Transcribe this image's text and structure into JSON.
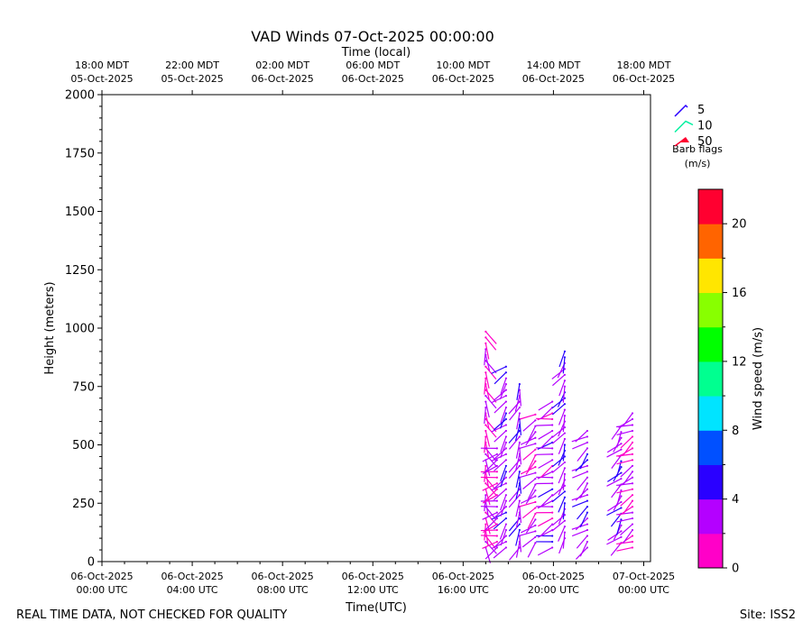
{
  "chart_data": {
    "type": "wind-barb",
    "title": "VAD Winds 07-Oct-2025 00:00:00",
    "top_axis_label": "Time (local)",
    "xlabel": "Time(UTC)",
    "ylabel": "Height (meters)",
    "ylim": [
      0,
      2000
    ],
    "yticks": [
      0,
      250,
      500,
      750,
      1000,
      1250,
      1500,
      1750,
      2000
    ],
    "xlim_hours_utc": [
      0,
      24.3
    ],
    "x_ticks_utc": [
      {
        "hour": 0,
        "line1": "06-Oct-2025",
        "line2": "00:00 UTC"
      },
      {
        "hour": 4,
        "line1": "06-Oct-2025",
        "line2": "04:00 UTC"
      },
      {
        "hour": 8,
        "line1": "06-Oct-2025",
        "line2": "08:00 UTC"
      },
      {
        "hour": 12,
        "line1": "06-Oct-2025",
        "line2": "12:00 UTC"
      },
      {
        "hour": 16,
        "line1": "06-Oct-2025",
        "line2": "16:00 UTC"
      },
      {
        "hour": 20,
        "line1": "06-Oct-2025",
        "line2": "20:00 UTC"
      },
      {
        "hour": 24,
        "line1": "07-Oct-2025",
        "line2": "00:00 UTC"
      }
    ],
    "x_ticks_local": [
      {
        "hour": 0,
        "line1": "18:00 MDT",
        "line2": "05-Oct-2025"
      },
      {
        "hour": 4,
        "line1": "22:00 MDT",
        "line2": "05-Oct-2025"
      },
      {
        "hour": 8,
        "line1": "02:00 MDT",
        "line2": "06-Oct-2025"
      },
      {
        "hour": 12,
        "line1": "06:00 MDT",
        "line2": "06-Oct-2025"
      },
      {
        "hour": 16,
        "line1": "10:00 MDT",
        "line2": "06-Oct-2025"
      },
      {
        "hour": 20,
        "line1": "14:00 MDT",
        "line2": "06-Oct-2025"
      },
      {
        "hour": 24,
        "line1": "18:00 MDT",
        "line2": "06-Oct-2025"
      }
    ],
    "barb_legend": {
      "title_line1": "Barb flags",
      "title_line2": "(m/s)",
      "entries": [
        {
          "label": "5",
          "color": "#2a00ff"
        },
        {
          "label": "10",
          "color": "#00f0a0"
        },
        {
          "label": "50",
          "color": "#ff0030"
        }
      ]
    },
    "colorbar": {
      "label": "Wind speed (m/s)",
      "range": [
        0,
        22
      ],
      "ticks": [
        0,
        4,
        8,
        12,
        16,
        20
      ],
      "colors": [
        "#ff00c8",
        "#b400ff",
        "#2a00ff",
        "#0050ff",
        "#00e4ff",
        "#00ff90",
        "#00ff00",
        "#88ff00",
        "#ffe600",
        "#ff6400",
        "#ff0030"
      ]
    },
    "profiles": [
      {
        "hour": 17.0,
        "h_min": 60,
        "h_max": 1000,
        "step": 25,
        "speed": 1.5,
        "dir_deg": 160
      },
      {
        "hour": 17.5,
        "h_min": 60,
        "h_max": 500,
        "step": 25,
        "speed": 2.0,
        "dir_deg": 250
      },
      {
        "hour": 17.9,
        "h_min": 60,
        "h_max": 850,
        "step": 25,
        "speed": 3.2,
        "dir_deg": 220
      },
      {
        "hour": 18.5,
        "h_min": 60,
        "h_max": 760,
        "step": 25,
        "speed": 3.5,
        "dir_deg": 200
      },
      {
        "hour": 19.2,
        "h_min": 80,
        "h_max": 650,
        "step": 25,
        "speed": 2.5,
        "dir_deg": 230
      },
      {
        "hour": 19.95,
        "h_min": 60,
        "h_max": 690,
        "step": 25,
        "speed": 3.0,
        "dir_deg": 250
      },
      {
        "hour": 20.5,
        "h_min": 100,
        "h_max": 910,
        "step": 25,
        "speed": 3.5,
        "dir_deg": 210
      },
      {
        "hour": 21.5,
        "h_min": 60,
        "h_max": 570,
        "step": 25,
        "speed": 3.2,
        "dir_deg": 230
      },
      {
        "hour": 23.0,
        "h_min": 80,
        "h_max": 580,
        "step": 25,
        "speed": 3.5,
        "dir_deg": 220
      },
      {
        "hour": 23.5,
        "h_min": 60,
        "h_max": 640,
        "step": 25,
        "speed": 2.0,
        "dir_deg": 240
      }
    ]
  },
  "footer": {
    "left": "REAL TIME DATA, NOT CHECKED FOR QUALITY",
    "right": "Site: ISS2"
  }
}
